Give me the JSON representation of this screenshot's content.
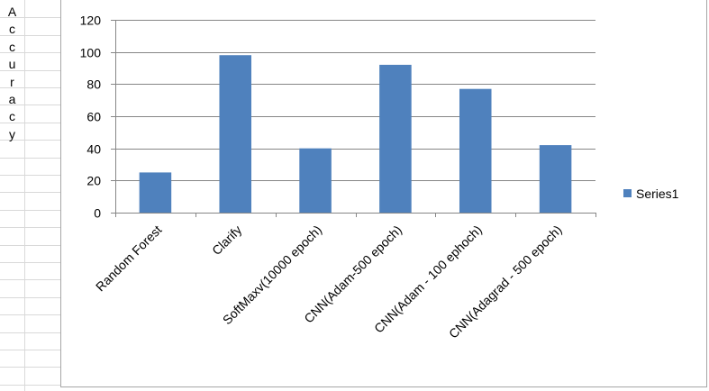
{
  "sheet": {
    "row_letters": [
      "A",
      "c",
      "c",
      "u",
      "r",
      "a",
      "c",
      "y"
    ]
  },
  "chart_data": {
    "type": "bar",
    "categories": [
      "Random Forest",
      "Clarify",
      "SoftMaxv(10000 epoch)",
      "CNN(Adam-500 epoch)",
      "CNN(Adam - 100 ephoch)",
      "CNN(Adagrad - 500 epoch)"
    ],
    "series": [
      {
        "name": "Series1",
        "values": [
          25,
          98,
          40,
          92,
          77,
          42
        ],
        "color": "#4f81bd"
      }
    ],
    "ylim": [
      0,
      120
    ],
    "yticks": [
      0,
      20,
      40,
      60,
      80,
      100,
      120
    ],
    "grid": true,
    "legend": "right",
    "ylabel": "Accuracy"
  }
}
